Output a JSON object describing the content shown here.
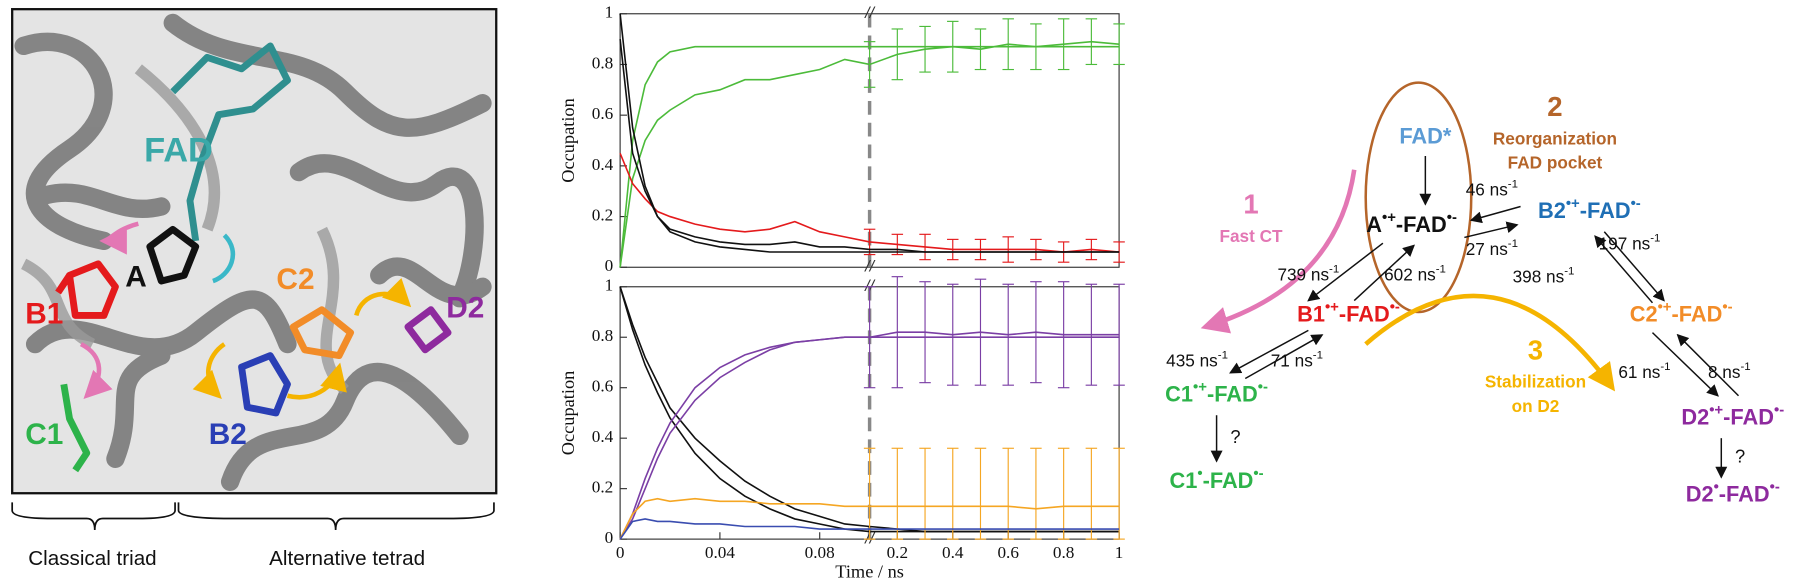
{
  "structure": {
    "labels": [
      {
        "text": "FAD",
        "color": "#3aa8a8"
      },
      {
        "text": "A",
        "color": "#111111"
      },
      {
        "text": "B1",
        "color": "#e41a1c"
      },
      {
        "text": "C1",
        "color": "#2db34a"
      },
      {
        "text": "B2",
        "color": "#2a3fb5"
      },
      {
        "text": "C2",
        "color": "#f28c28"
      },
      {
        "text": "D2",
        "color": "#8e2a9e"
      }
    ],
    "groups": [
      "Classical triad",
      "Alternative tetrad"
    ]
  },
  "chart_data": [
    {
      "type": "line",
      "y_label": "Occupation",
      "x": [
        0,
        0.005,
        0.01,
        0.015,
        0.02,
        0.03,
        0.04,
        0.05,
        0.06,
        0.07,
        0.08,
        0.09,
        0.1,
        0.2,
        0.3,
        0.4,
        0.5,
        0.6,
        0.7,
        0.8,
        0.9,
        1
      ],
      "xlim": [
        0,
        1
      ],
      "xbreak": 0.1,
      "ylim": [
        0,
        1
      ],
      "yticks": [
        0,
        0.2,
        0.4,
        0.6,
        0.8,
        1
      ],
      "series": [
        {
          "color": "#4cbb3a",
          "values": [
            0,
            0.35,
            0.5,
            0.58,
            0.62,
            0.68,
            0.7,
            0.74,
            0.74,
            0.76,
            0.78,
            0.82,
            0.8,
            0.84,
            0.86,
            0.87,
            0.86,
            0.88,
            0.87,
            0.88,
            0.89,
            0.88
          ],
          "errors": [
            null,
            null,
            null,
            null,
            null,
            null,
            null,
            null,
            null,
            null,
            null,
            null,
            0.09,
            0.1,
            0.09,
            0.1,
            0.08,
            0.1,
            0.09,
            0.1,
            0.09,
            0.08
          ]
        },
        {
          "color": "#4cbb3a",
          "values": [
            0,
            0.5,
            0.72,
            0.81,
            0.85,
            0.87,
            0.87,
            0.87,
            0.87,
            0.87,
            0.87,
            0.87,
            0.87,
            0.87,
            0.87,
            0.87,
            0.87,
            0.87,
            0.87,
            0.87,
            0.87,
            0.87
          ]
        },
        {
          "color": "#e41a1c",
          "values": [
            0.45,
            0.33,
            0.27,
            0.22,
            0.2,
            0.17,
            0.15,
            0.14,
            0.15,
            0.18,
            0.14,
            0.12,
            0.1,
            0.09,
            0.08,
            0.07,
            0.07,
            0.07,
            0.07,
            0.06,
            0.07,
            0.06
          ],
          "errors": [
            null,
            null,
            null,
            null,
            null,
            null,
            null,
            null,
            null,
            null,
            null,
            null,
            0.05,
            0.04,
            0.05,
            0.04,
            0.04,
            0.05,
            0.04,
            0.04,
            0.04,
            0.04
          ]
        },
        {
          "color": "#111111",
          "values": [
            0.9,
            0.45,
            0.3,
            0.2,
            0.15,
            0.12,
            0.1,
            0.09,
            0.09,
            0.1,
            0.08,
            0.08,
            0.07,
            0.07,
            0.06,
            0.06,
            0.06,
            0.06,
            0.06,
            0.06,
            0.06,
            0.06
          ]
        },
        {
          "color": "#111111",
          "values": [
            1,
            0.55,
            0.32,
            0.2,
            0.14,
            0.1,
            0.08,
            0.07,
            0.06,
            0.06,
            0.06,
            0.06,
            0.06,
            0.06,
            0.06,
            0.06,
            0.06,
            0.06,
            0.06,
            0.06,
            0.06,
            0.06
          ]
        }
      ]
    },
    {
      "type": "line",
      "y_label": "Occupation",
      "x_label": "Time / ns",
      "x": [
        0,
        0.005,
        0.01,
        0.015,
        0.02,
        0.03,
        0.04,
        0.05,
        0.06,
        0.07,
        0.08,
        0.09,
        0.1,
        0.2,
        0.3,
        0.4,
        0.5,
        0.6,
        0.7,
        0.8,
        0.9,
        1
      ],
      "xlim": [
        0,
        1
      ],
      "xbreak": 0.1,
      "xticks": [
        0,
        0.04,
        0.08,
        0.2,
        0.4,
        0.6,
        0.8,
        1
      ],
      "ylim": [
        0,
        1
      ],
      "yticks": [
        0,
        0.2,
        0.4,
        0.6,
        0.8,
        1
      ],
      "series": [
        {
          "color": "#111111",
          "values": [
            1,
            0.85,
            0.72,
            0.62,
            0.52,
            0.4,
            0.31,
            0.23,
            0.17,
            0.12,
            0.09,
            0.06,
            0.05,
            0.04,
            0.03,
            0.03,
            0.03,
            0.03,
            0.03,
            0.03,
            0.03,
            0.03
          ]
        },
        {
          "color": "#111111",
          "values": [
            1,
            0.83,
            0.69,
            0.58,
            0.48,
            0.34,
            0.24,
            0.17,
            0.12,
            0.08,
            0.06,
            0.04,
            0.03,
            0.03,
            0.03,
            0.03,
            0.03,
            0.03,
            0.03,
            0.03,
            0.03,
            0.03
          ]
        },
        {
          "color": "#7b3fa5",
          "values": [
            0,
            0.08,
            0.2,
            0.32,
            0.42,
            0.55,
            0.64,
            0.7,
            0.75,
            0.78,
            0.79,
            0.8,
            0.8,
            0.82,
            0.82,
            0.81,
            0.82,
            0.81,
            0.82,
            0.81,
            0.81,
            0.81
          ],
          "errors": [
            null,
            null,
            null,
            null,
            null,
            null,
            null,
            null,
            null,
            null,
            null,
            null,
            0.2,
            0.22,
            0.2,
            0.2,
            0.21,
            0.2,
            0.2,
            0.21,
            0.2,
            0.2
          ]
        },
        {
          "color": "#7b3fa5",
          "values": [
            0,
            0.1,
            0.24,
            0.36,
            0.46,
            0.6,
            0.68,
            0.73,
            0.76,
            0.78,
            0.79,
            0.8,
            0.8,
            0.8,
            0.8,
            0.8,
            0.8,
            0.8,
            0.8,
            0.8,
            0.8,
            0.8
          ]
        },
        {
          "color": "#f5a623",
          "values": [
            0,
            0.1,
            0.15,
            0.16,
            0.15,
            0.16,
            0.15,
            0.15,
            0.14,
            0.14,
            0.14,
            0.13,
            0.13,
            0.13,
            0.13,
            0.13,
            0.13,
            0.13,
            0.12,
            0.13,
            0.13,
            0.13
          ],
          "errors": [
            null,
            null,
            null,
            null,
            null,
            null,
            null,
            null,
            null,
            null,
            null,
            null,
            0.23,
            0.23,
            0.23,
            0.23,
            0.23,
            0.23,
            0.24,
            0.23,
            0.23,
            0.23
          ]
        },
        {
          "color": "#3a4db0",
          "values": [
            0,
            0.07,
            0.08,
            0.07,
            0.07,
            0.06,
            0.06,
            0.05,
            0.05,
            0.05,
            0.04,
            0.04,
            0.04,
            0.04,
            0.04,
            0.04,
            0.04,
            0.04,
            0.04,
            0.04,
            0.04,
            0.04
          ]
        }
      ]
    }
  ],
  "diagram": {
    "nodes": [
      {
        "base": "FAD*",
        "color": "#5b9bd5"
      },
      {
        "base": "A",
        "sup1": "•+",
        "mid": "-FAD",
        "sup2": "•-",
        "color": "#111111"
      },
      {
        "base": "B2",
        "sup1": "•+",
        "mid": "-FAD",
        "sup2": "•-",
        "color": "#1f6fb5"
      },
      {
        "base": "B1",
        "sup1": "•+",
        "mid": "-FAD",
        "sup2": "•-",
        "color": "#e41a1c"
      },
      {
        "base": "C2",
        "sup1": "•+",
        "mid": "-FAD",
        "sup2": "•-",
        "color": "#f28c28"
      },
      {
        "base": "C1",
        "sup1": "•+",
        "mid": "-FAD",
        "sup2": "•-",
        "color": "#2db34a"
      },
      {
        "base": "C1",
        "sup1": "•",
        "mid": "-FAD",
        "sup2": "•-",
        "color": "#2db34a"
      },
      {
        "base": "D2",
        "sup1": "•+",
        "mid": "-FAD",
        "sup2": "•-",
        "color": "#8e2a9e"
      },
      {
        "base": "D2",
        "sup1": "•",
        "mid": "-FAD",
        "sup2": "•-",
        "color": "#8e2a9e"
      }
    ],
    "rates": [
      {
        "text": "46 ns",
        "exp": "-1"
      },
      {
        "text": "27 ns",
        "exp": "-1"
      },
      {
        "text": "739 ns",
        "exp": "-1"
      },
      {
        "text": "602 ns",
        "exp": "-1"
      },
      {
        "text": "197 ns",
        "exp": "-1"
      },
      {
        "text": "398 ns",
        "exp": "-1"
      },
      {
        "text": "435 ns",
        "exp": "-1"
      },
      {
        "text": "71 ns",
        "exp": "-1"
      },
      {
        "text": "61 ns",
        "exp": "-1"
      },
      {
        "text": "8 ns",
        "exp": "-1"
      }
    ],
    "steps": [
      {
        "number": "1",
        "lines": [
          "Fast CT"
        ],
        "color": "#e377b4"
      },
      {
        "number": "2",
        "lines": [
          "Reorganization",
          "FAD pocket"
        ],
        "color": "#b5652a"
      },
      {
        "number": "3",
        "lines": [
          "Stabilization",
          "on D2"
        ],
        "color": "#f5b400"
      }
    ],
    "unknown": [
      "?",
      "?"
    ]
  }
}
